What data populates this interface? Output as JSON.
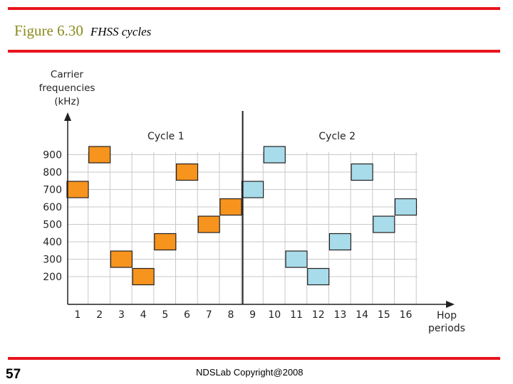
{
  "slide": {
    "figure_number": "Figure 6.30",
    "figure_caption": "FHSS cycles",
    "slide_number": "57",
    "footer": "NDSLab Copyright@2008"
  },
  "chart_data": {
    "type": "scatter",
    "ylabel_lines": [
      "Carrier",
      "frequencies",
      "(kHz)"
    ],
    "xlabel_lines": [
      "Hop",
      "periods"
    ],
    "x_ticks": [
      "1",
      "2",
      "3",
      "4",
      "5",
      "6",
      "7",
      "8",
      "9",
      "10",
      "11",
      "12",
      "13",
      "14",
      "15",
      "16"
    ],
    "y_ticks": [
      200,
      300,
      400,
      500,
      600,
      700,
      800,
      900
    ],
    "cycles": [
      {
        "label": "Cycle 1",
        "color": "#f7941d"
      },
      {
        "label": "Cycle 2",
        "color": "#a8dcea"
      }
    ],
    "cycle_divider_after_period": 8,
    "grid": true,
    "hops": [
      {
        "period": 1,
        "freq": 700,
        "cycle": 0
      },
      {
        "period": 2,
        "freq": 900,
        "cycle": 0
      },
      {
        "period": 3,
        "freq": 300,
        "cycle": 0
      },
      {
        "period": 4,
        "freq": 200,
        "cycle": 0
      },
      {
        "period": 5,
        "freq": 400,
        "cycle": 0
      },
      {
        "period": 6,
        "freq": 800,
        "cycle": 0
      },
      {
        "period": 7,
        "freq": 500,
        "cycle": 0
      },
      {
        "period": 8,
        "freq": 600,
        "cycle": 0
      },
      {
        "period": 9,
        "freq": 700,
        "cycle": 1
      },
      {
        "period": 10,
        "freq": 900,
        "cycle": 1
      },
      {
        "period": 11,
        "freq": 300,
        "cycle": 1
      },
      {
        "period": 12,
        "freq": 200,
        "cycle": 1
      },
      {
        "period": 13,
        "freq": 400,
        "cycle": 1
      },
      {
        "period": 14,
        "freq": 800,
        "cycle": 1
      },
      {
        "period": 15,
        "freq": 500,
        "cycle": 1
      },
      {
        "period": 16,
        "freq": 600,
        "cycle": 1
      }
    ]
  }
}
